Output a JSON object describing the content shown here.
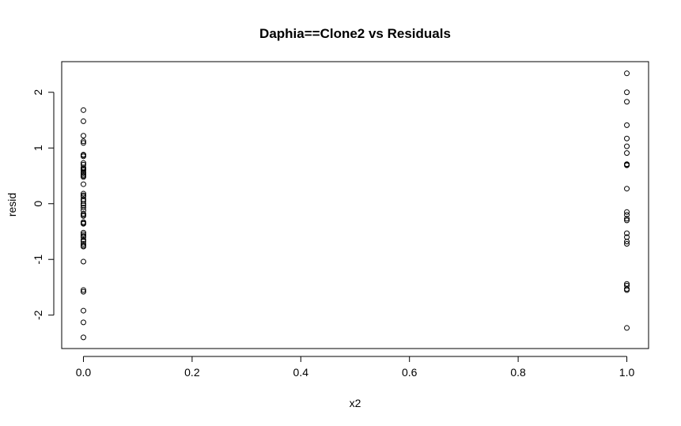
{
  "chart_data": {
    "type": "scatter",
    "title": "Daphia==Clone2 vs Residuals",
    "xlabel": "x2",
    "ylabel": "resid",
    "xlim": [
      -0.04,
      1.04
    ],
    "ylim": [
      -2.6,
      2.55
    ],
    "xticks": [
      "0.0",
      "0.2",
      "0.4",
      "0.6",
      "0.8",
      "1.0"
    ],
    "yticks": [
      "-2",
      "-1",
      "0",
      "1",
      "2"
    ],
    "grid": false,
    "legend": "none",
    "series": [
      {
        "x": [
          0,
          0,
          0,
          0,
          0,
          0,
          0,
          0,
          0,
          0,
          0,
          0,
          0,
          0,
          0,
          0,
          0,
          0,
          0,
          0,
          0,
          0,
          0,
          0,
          0,
          0,
          0,
          0,
          0,
          0,
          0,
          0,
          0,
          0,
          0,
          0,
          0,
          0,
          0,
          0,
          0,
          0,
          0,
          0,
          0,
          0,
          0,
          0,
          0,
          0
        ],
        "y": [
          1.68,
          1.48,
          1.22,
          1.12,
          1.09,
          0.87,
          0.85,
          0.73,
          0.7,
          0.65,
          0.63,
          0.6,
          0.56,
          0.52,
          0.48,
          0.35,
          0.18,
          0.13,
          0.08,
          0.0,
          -0.07,
          -0.12,
          -0.18,
          -0.2,
          -0.33,
          -0.36,
          -0.52,
          -0.55,
          -0.58,
          -0.65,
          -0.68,
          -0.72,
          -0.77,
          -1.04,
          -1.55,
          -1.58,
          -1.92,
          -2.13,
          -2.4,
          0.05,
          -0.03,
          -0.22,
          -0.35,
          -0.6,
          0.55,
          0.62,
          0.88,
          0.15,
          -0.75,
          0.5
        ]
      },
      {
        "x": [
          1,
          1,
          1,
          1,
          1,
          1,
          1,
          1,
          1,
          1,
          1,
          1,
          1,
          1,
          1,
          1,
          1,
          1,
          1,
          1,
          1,
          1,
          1,
          1
        ],
        "y": [
          2.34,
          2.0,
          1.83,
          1.41,
          1.17,
          1.03,
          0.91,
          0.71,
          0.7,
          0.27,
          -0.15,
          -0.2,
          -0.27,
          -0.3,
          -0.53,
          -0.6,
          -0.68,
          -0.72,
          -1.44,
          -1.47,
          -1.53,
          -1.55,
          -2.23,
          0.69
        ]
      }
    ]
  }
}
